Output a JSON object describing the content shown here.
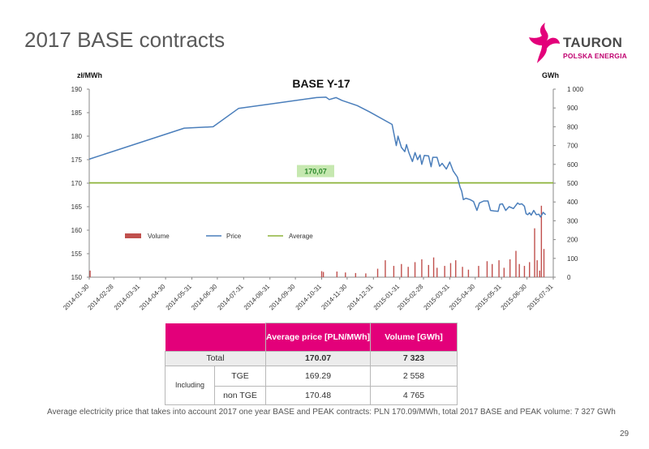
{
  "slide": {
    "title": "2017 BASE contracts",
    "page_number": "29",
    "footnote": "Average electricity price that takes into account 2017 one year BASE and PEAK contracts: PLN 170.09/MWh, total 2017 BASE and PEAK volume: 7 327 GWh"
  },
  "logo": {
    "name": "TAURON",
    "subtitle": "POLSKA ENERGIA",
    "icon": "tauron-star-logo",
    "brand_color": "#e3007a"
  },
  "colors": {
    "price_line": "#4a7ebb",
    "average_line": "#8db33a",
    "volume_bars": "#c0504d",
    "average_label_bg": "#c6e8b0",
    "average_label_text": "#2e8b2e",
    "table_header": "#e3007a"
  },
  "chart_data": {
    "type": "line",
    "title": "BASE   Y-17",
    "y_left_label": "zł/MWh",
    "y_right_label": "GWh",
    "y_left_range": [
      150,
      190
    ],
    "y_left_ticks": [
      "190",
      "185",
      "180",
      "175",
      "170",
      "165",
      "160",
      "155",
      "150"
    ],
    "y_right_range": [
      0,
      1000
    ],
    "y_right_ticks": [
      "1 000",
      "900",
      "800",
      "700",
      "600",
      "500",
      "400",
      "300",
      "200",
      "100",
      "0"
    ],
    "x_ticks": [
      "2014-01-30",
      "2014-02-28",
      "2014-03-31",
      "2014-04-30",
      "2014-05-31",
      "2014-06-30",
      "2014-07-31",
      "2014-08-31",
      "2014-09-30",
      "2014-10-31",
      "2014-11-30",
      "2014-12-31",
      "2015-01-31",
      "2015-02-28",
      "2015-03-31",
      "2015-04-30",
      "2015-05-31",
      "2015-06-30",
      "2015-07-31"
    ],
    "legend": [
      "Volume",
      "Price",
      "Average"
    ],
    "legend_position": "bottom-left",
    "average": {
      "value": 170.07,
      "label": "170,07"
    },
    "series": [
      {
        "name": "Price",
        "points": [
          [
            "2014-01-30",
            175.1
          ],
          [
            "2014-05-22",
            181.7
          ],
          [
            "2014-06-25",
            182.0
          ],
          [
            "2014-07-25",
            185.9
          ],
          [
            "2014-10-25",
            188.2
          ],
          [
            "2014-11-05",
            188.3
          ],
          [
            "2014-11-09",
            187.8
          ],
          [
            "2014-11-17",
            188.2
          ],
          [
            "2014-11-24",
            187.6
          ],
          [
            "2014-12-12",
            186.5
          ],
          [
            "2014-12-26",
            185.2
          ],
          [
            "2015-01-22",
            182.5
          ],
          [
            "2015-01-27",
            178.0
          ],
          [
            "2015-01-29",
            180.0
          ],
          [
            "2015-02-02",
            177.6
          ],
          [
            "2015-02-06",
            176.7
          ],
          [
            "2015-02-08",
            178.2
          ],
          [
            "2015-02-11",
            176.4
          ],
          [
            "2015-02-15",
            174.6
          ],
          [
            "2015-02-18",
            176.5
          ],
          [
            "2015-02-21",
            175.0
          ],
          [
            "2015-02-24",
            176.0
          ],
          [
            "2015-02-26",
            174.0
          ],
          [
            "2015-03-01",
            175.9
          ],
          [
            "2015-03-06",
            175.8
          ],
          [
            "2015-03-09",
            173.5
          ],
          [
            "2015-03-11",
            175.5
          ],
          [
            "2015-03-16",
            175.5
          ],
          [
            "2015-03-19",
            173.6
          ],
          [
            "2015-03-22",
            174.2
          ],
          [
            "2015-03-27",
            173.0
          ],
          [
            "2015-03-31",
            174.5
          ],
          [
            "2015-04-04",
            172.6
          ],
          [
            "2015-04-09",
            171.3
          ],
          [
            "2015-04-12",
            169.2
          ],
          [
            "2015-04-14",
            168.3
          ],
          [
            "2015-04-16",
            166.5
          ],
          [
            "2015-04-19",
            166.8
          ],
          [
            "2015-04-24",
            166.5
          ],
          [
            "2015-04-28",
            166.1
          ],
          [
            "2015-05-02",
            164.2
          ],
          [
            "2015-05-05",
            165.8
          ],
          [
            "2015-05-10",
            166.2
          ],
          [
            "2015-05-15",
            166.2
          ],
          [
            "2015-05-18",
            164.2
          ],
          [
            "2015-05-22",
            164.1
          ],
          [
            "2015-05-27",
            164.0
          ],
          [
            "2015-05-29",
            165.5
          ],
          [
            "2015-06-01",
            165.6
          ],
          [
            "2015-06-05",
            164.2
          ],
          [
            "2015-06-09",
            165.0
          ],
          [
            "2015-06-14",
            164.6
          ],
          [
            "2015-06-19",
            165.8
          ],
          [
            "2015-06-21",
            165.5
          ],
          [
            "2015-06-24",
            165.6
          ],
          [
            "2015-06-27",
            165.1
          ],
          [
            "2015-06-29",
            163.5
          ],
          [
            "2015-07-01",
            163.3
          ],
          [
            "2015-07-03",
            163.7
          ],
          [
            "2015-07-05",
            163.2
          ],
          [
            "2015-07-08",
            164.2
          ],
          [
            "2015-07-11",
            163.3
          ],
          [
            "2015-07-14",
            163.4
          ],
          [
            "2015-07-16",
            162.8
          ],
          [
            "2015-07-19",
            163.8
          ],
          [
            "2015-07-22",
            163.3
          ]
        ]
      },
      {
        "name": "Volume",
        "unit": "GWh",
        "points": [
          [
            "2014-01-31",
            35
          ],
          [
            "2014-10-31",
            32
          ],
          [
            "2014-11-02",
            28
          ],
          [
            "2014-11-18",
            30
          ],
          [
            "2014-11-28",
            25
          ],
          [
            "2014-12-10",
            22
          ],
          [
            "2014-12-22",
            20
          ],
          [
            "2015-01-05",
            45
          ],
          [
            "2015-01-14",
            90
          ],
          [
            "2015-01-24",
            60
          ],
          [
            "2015-02-02",
            70
          ],
          [
            "2015-02-10",
            55
          ],
          [
            "2015-02-18",
            80
          ],
          [
            "2015-02-26",
            95
          ],
          [
            "2015-03-06",
            65
          ],
          [
            "2015-03-12",
            105
          ],
          [
            "2015-03-16",
            50
          ],
          [
            "2015-03-25",
            60
          ],
          [
            "2015-04-01",
            75
          ],
          [
            "2015-04-07",
            90
          ],
          [
            "2015-04-15",
            55
          ],
          [
            "2015-04-22",
            40
          ],
          [
            "2015-05-04",
            60
          ],
          [
            "2015-05-14",
            85
          ],
          [
            "2015-05-20",
            70
          ],
          [
            "2015-05-28",
            90
          ],
          [
            "2015-06-03",
            50
          ],
          [
            "2015-06-10",
            95
          ],
          [
            "2015-06-17",
            140
          ],
          [
            "2015-06-21",
            70
          ],
          [
            "2015-06-27",
            60
          ],
          [
            "2015-07-03",
            80
          ],
          [
            "2015-07-09",
            260
          ],
          [
            "2015-07-12",
            90
          ],
          [
            "2015-07-15",
            35
          ],
          [
            "2015-07-17",
            380
          ],
          [
            "2015-07-20",
            150
          ]
        ]
      }
    ]
  },
  "summary_table": {
    "header": {
      "average_price": "Average price [PLN/MWh]",
      "volume": "Volume [GWh]"
    },
    "rows": [
      {
        "label": "Total",
        "price": "170.07",
        "volume": "7 323"
      },
      {
        "group": "Including",
        "label": "TGE",
        "price": "169.29",
        "volume": "2 558"
      },
      {
        "label": "non TGE",
        "price": "170.48",
        "volume": "4 765"
      }
    ]
  }
}
